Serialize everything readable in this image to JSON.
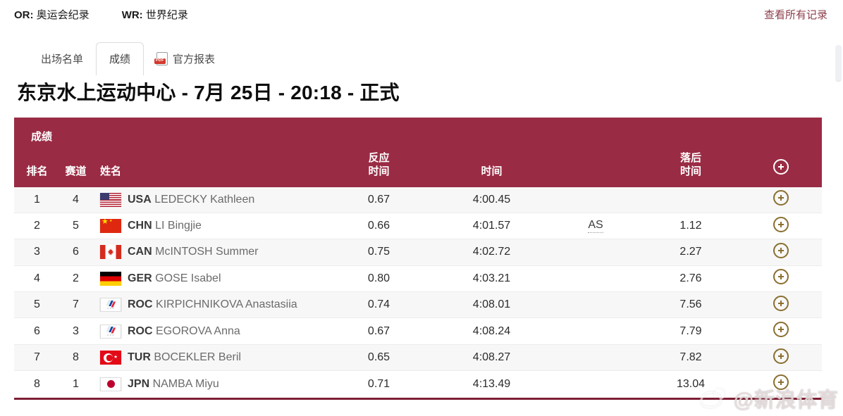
{
  "colors": {
    "maroon": "#9a2b44",
    "maroon-dark": "#7d1f35",
    "gold": "#8a6e2f",
    "link": "#8b3d4a",
    "row-alt": "#f7f7f7"
  },
  "legend": {
    "or_label": "OR:",
    "or_text": "奥运会纪录",
    "wr_label": "WR:",
    "wr_text": "世界纪录",
    "view_all": "查看所有记录"
  },
  "tabs": {
    "start_list": "出场名单",
    "results": "成绩",
    "official_report": "官方报表"
  },
  "page_title": "东京水上运动中心 - 7月 25日 - 20:18 - 正式",
  "table": {
    "caption": "成绩",
    "columns": {
      "rank": "排名",
      "lane": "赛道",
      "name": "姓名",
      "reaction_line1": "反应",
      "reaction_line2": "时间",
      "time": "时间",
      "behind_line1": "落后",
      "behind_line2": "时间"
    },
    "rows": [
      {
        "rank": "1",
        "lane": "4",
        "flag": "USA",
        "noc": "USA",
        "athlete": "LEDECKY Kathleen",
        "reaction": "0.67",
        "time": "4:00.45",
        "record": "",
        "behind": ""
      },
      {
        "rank": "2",
        "lane": "5",
        "flag": "CHN",
        "noc": "CHN",
        "athlete": "LI Bingjie",
        "reaction": "0.66",
        "time": "4:01.57",
        "record": "AS",
        "behind": "1.12"
      },
      {
        "rank": "3",
        "lane": "6",
        "flag": "CAN",
        "noc": "CAN",
        "athlete": "McINTOSH Summer",
        "reaction": "0.75",
        "time": "4:02.72",
        "record": "",
        "behind": "2.27"
      },
      {
        "rank": "4",
        "lane": "2",
        "flag": "GER",
        "noc": "GER",
        "athlete": "GOSE Isabel",
        "reaction": "0.80",
        "time": "4:03.21",
        "record": "",
        "behind": "2.76"
      },
      {
        "rank": "5",
        "lane": "7",
        "flag": "ROC",
        "noc": "ROC",
        "athlete": "KIRPICHNIKOVA Anastasiia",
        "reaction": "0.74",
        "time": "4:08.01",
        "record": "",
        "behind": "7.56"
      },
      {
        "rank": "6",
        "lane": "3",
        "flag": "ROC",
        "noc": "ROC",
        "athlete": "EGOROVA Anna",
        "reaction": "0.67",
        "time": "4:08.24",
        "record": "",
        "behind": "7.79"
      },
      {
        "rank": "7",
        "lane": "8",
        "flag": "TUR",
        "noc": "TUR",
        "athlete": "BOCEKLER Beril",
        "reaction": "0.65",
        "time": "4:08.27",
        "record": "",
        "behind": "7.82"
      },
      {
        "rank": "8",
        "lane": "1",
        "flag": "JPN",
        "noc": "JPN",
        "athlete": "NAMBA Miyu",
        "reaction": "0.71",
        "time": "4:13.49",
        "record": "",
        "behind": "13.04"
      }
    ]
  },
  "watermark": {
    "text": "@新浪体育"
  }
}
